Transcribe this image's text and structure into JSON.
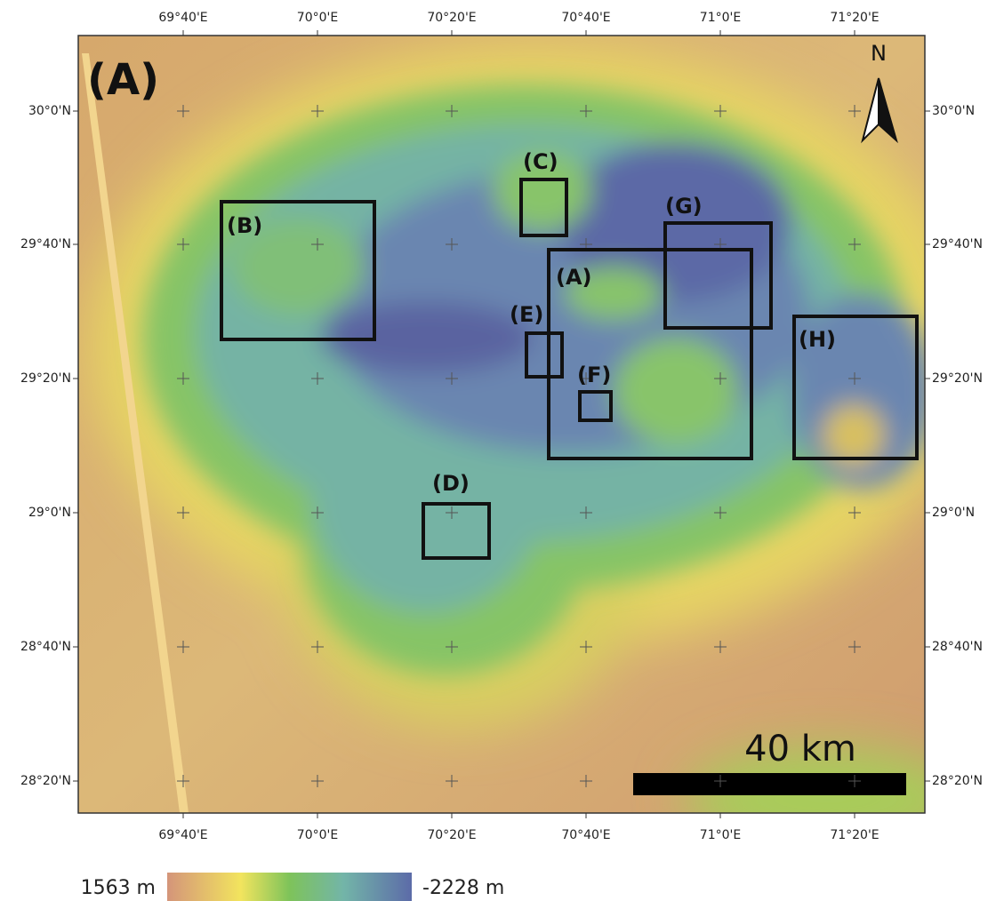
{
  "map": {
    "panel_label": "(A)",
    "north": "N",
    "scale_label": "40 km",
    "lon_ticks": [
      "69°40'E",
      "70°0'E",
      "70°20'E",
      "70°40'E",
      "71°0'E",
      "71°20'E"
    ],
    "lat_ticks": [
      "30°0'N",
      "29°40'N",
      "29°20'N",
      "29°0'N",
      "28°40'N",
      "28°20'N"
    ],
    "boxes": [
      {
        "label": "(B)"
      },
      {
        "label": "(C)"
      },
      {
        "label": "(A)"
      },
      {
        "label": "(G)"
      },
      {
        "label": "(E)"
      },
      {
        "label": "(F)"
      },
      {
        "label": "(H)"
      },
      {
        "label": "(D)"
      }
    ],
    "legend": {
      "max_label": "1563 m",
      "min_label": "-2228 m"
    }
  }
}
